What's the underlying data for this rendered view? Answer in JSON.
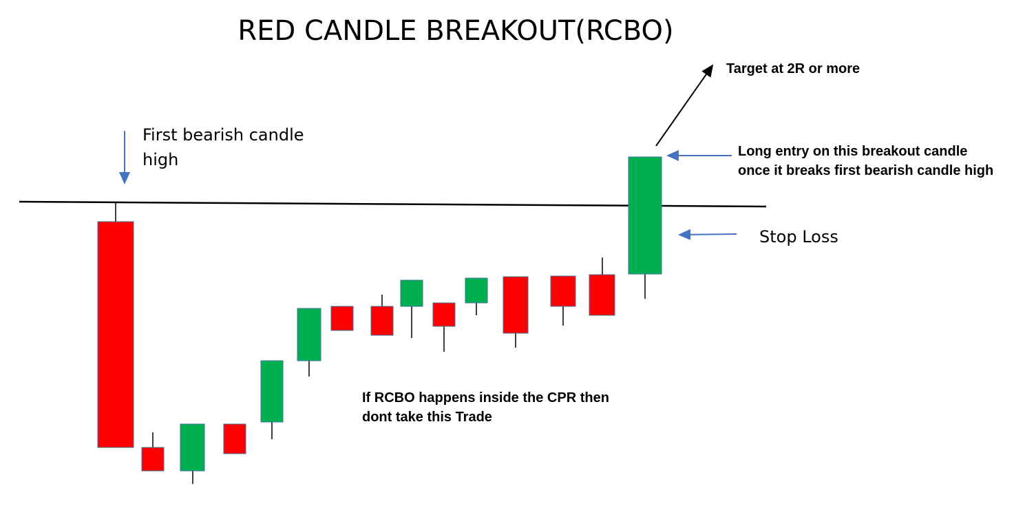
{
  "title": "RED CANDLE BREAKOUT(RCBO)",
  "annotations": {
    "first_high": [
      "First bearish candle",
      "high"
    ],
    "target": "Target at 2R or more",
    "entry": [
      "Long entry on this breakout candle",
      "once it breaks first bearish candle high"
    ],
    "stop_loss": "Stop Loss",
    "cpr_note": [
      "If RCBO happens inside the CPR then",
      "dont take this Trade"
    ]
  }
}
